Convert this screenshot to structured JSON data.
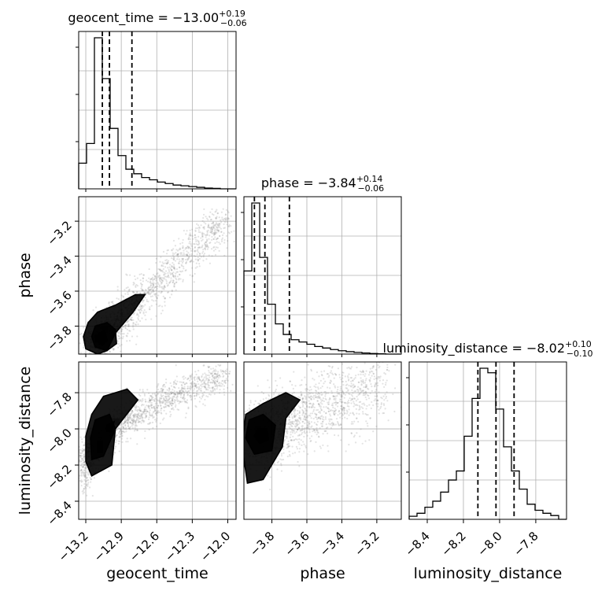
{
  "chart_data": {
    "type": "corner",
    "parameters": [
      {
        "name": "geocent_time",
        "median": -13.0,
        "plus": 0.19,
        "minus": 0.06,
        "range": [
          -13.26,
          -11.93
        ],
        "ticks": [
          -13.2,
          -12.9,
          -12.6,
          -12.3,
          -12.0
        ],
        "tick_labels": [
          "−13.2",
          "−12.9",
          "−12.6",
          "−12.3",
          "−12.0"
        ],
        "quantiles": [
          -13.06,
          -13.0,
          -12.81
        ],
        "hist": [
          0.17,
          0.3,
          1.0,
          0.73,
          0.4,
          0.22,
          0.13,
          0.1,
          0.075,
          0.06,
          0.045,
          0.035,
          0.025,
          0.02,
          0.015,
          0.01,
          0.005,
          0.003,
          0.0,
          0.0
        ]
      },
      {
        "name": "phase",
        "median": -3.84,
        "plus": 0.14,
        "minus": 0.06,
        "range": [
          -3.96,
          -3.06
        ],
        "ticks": [
          -3.8,
          -3.6,
          -3.4,
          -3.2
        ],
        "tick_labels": [
          "−3.8",
          "−3.6",
          "−3.4",
          "−3.2"
        ],
        "quantiles": [
          -3.9,
          -3.84,
          -3.7
        ],
        "hist": [
          0.55,
          1.0,
          0.64,
          0.33,
          0.2,
          0.13,
          0.095,
          0.08,
          0.065,
          0.05,
          0.04,
          0.03,
          0.022,
          0.016,
          0.011,
          0.007,
          0.004,
          0.002,
          0.0,
          0.0
        ]
      },
      {
        "name": "luminosity_distance",
        "median": -8.02,
        "plus": 0.1,
        "minus": 0.1,
        "range": [
          -8.5,
          -7.63
        ],
        "ticks": [
          -8.4,
          -8.2,
          -8.0,
          -7.8
        ],
        "tick_labels": [
          "−8.4",
          "−8.2",
          "−8.0",
          "−7.8"
        ],
        "quantiles": [
          -8.12,
          -8.02,
          -7.92
        ],
        "hist": [
          0.02,
          0.04,
          0.08,
          0.12,
          0.18,
          0.26,
          0.32,
          0.55,
          0.8,
          1.0,
          0.97,
          0.73,
          0.48,
          0.32,
          0.2,
          0.1,
          0.06,
          0.04,
          0.025,
          0.0
        ]
      }
    ],
    "titles": [
      {
        "base": "geocent_time = −13.00",
        "sup": "+0.19",
        "sub": "−0.06"
      },
      {
        "base": "phase = −3.84",
        "sup": "+0.14",
        "sub": "−0.06"
      },
      {
        "base": "luminosity_distance = −8.02",
        "sup": "+0.10",
        "sub": "−0.10"
      }
    ],
    "xlabels": [
      "geocent_time",
      "phase",
      "luminosity_distance"
    ],
    "ylabels": [
      "",
      "phase",
      "luminosity_distance"
    ],
    "grid": true,
    "colors": {
      "line": "#000000",
      "points": "#808080",
      "grid": "#b0b0b0"
    }
  }
}
